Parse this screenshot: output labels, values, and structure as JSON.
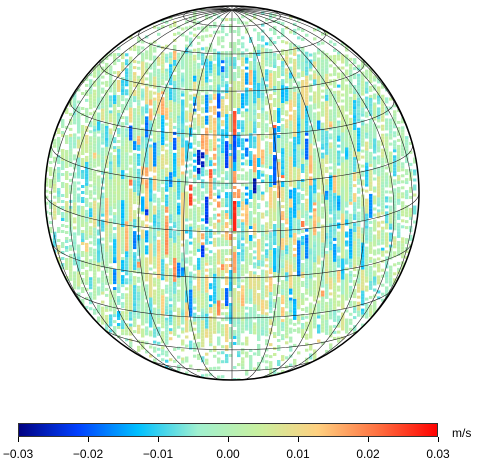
{
  "map": {
    "projection": "orthographic",
    "graticule": true,
    "center_latitude_deg": 0,
    "missing_data_color": "#ffffff"
  },
  "colorbar": {
    "unit": "m/s",
    "min": -0.03,
    "max": 0.03,
    "tick_labels": [
      "−0.03",
      "−0.02",
      "−0.01",
      "0.00",
      "0.01",
      "0.02",
      "0.03"
    ],
    "tick_values": [
      -0.03,
      -0.02,
      -0.01,
      0.0,
      0.01,
      0.02,
      0.03
    ],
    "colormap_stops": [
      "#00007f",
      "#0040ff",
      "#00c0ff",
      "#a0f0d0",
      "#c8f0a0",
      "#ffd080",
      "#ff7040",
      "#ff0000"
    ]
  }
}
